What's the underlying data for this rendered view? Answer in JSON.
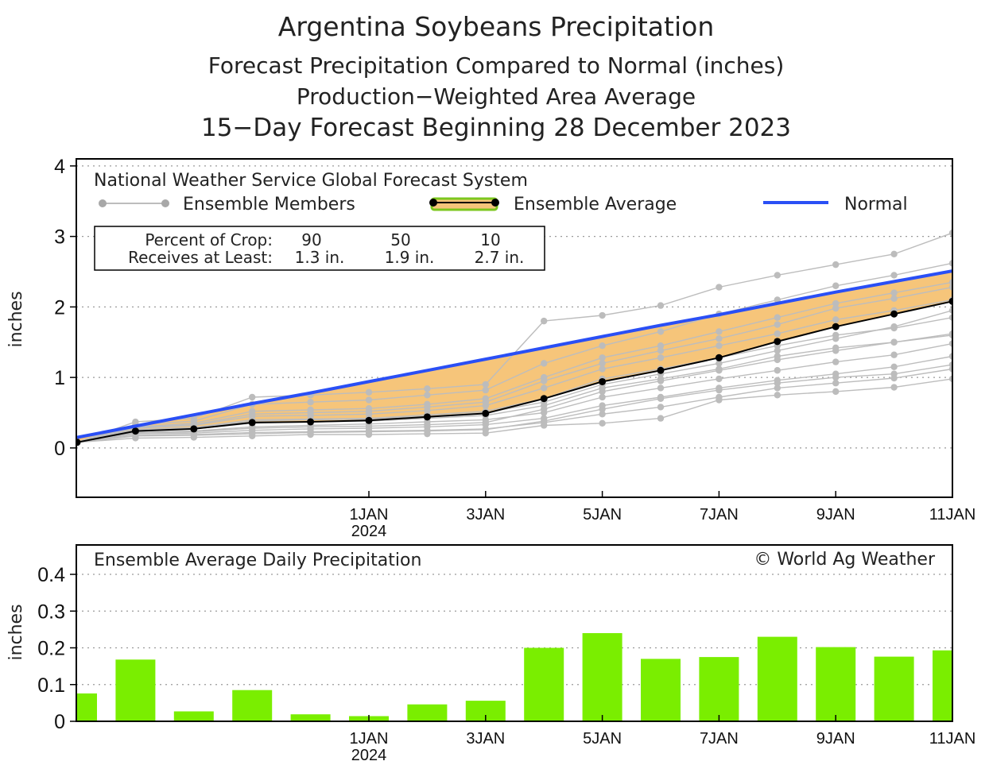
{
  "titles": {
    "line1": "Argentina Soybeans Precipitation",
    "line2": "Forecast Precipitation Compared to Normal (inches)",
    "line3": "Production−Weighted Area Average",
    "line4": "15−Day Forecast Beginning 28 December 2023"
  },
  "chart_data": [
    {
      "type": "line",
      "model": "National Weather Service Global Forecast System",
      "legend": {
        "members": "Ensemble Members",
        "average": "Ensemble Average",
        "normal": "Normal"
      },
      "crop_table": {
        "row1_label": "Percent of Crop:",
        "row2_label": "Receives at Least:",
        "percents": [
          "90",
          "50",
          "10"
        ],
        "amounts": [
          "1.3 in.",
          "1.9 in.",
          "2.7 in."
        ]
      },
      "ylabel": "inches",
      "ylim": [
        -0.7,
        4.1
      ],
      "xlim": [
        0,
        15
      ],
      "yticks": [
        "0",
        "1",
        "2",
        "3",
        "4"
      ],
      "xticks": [
        {
          "day": 5,
          "label": "1JAN",
          "sub": "2024"
        },
        {
          "day": 7,
          "label": "3JAN",
          "sub": ""
        },
        {
          "day": 9,
          "label": "5JAN",
          "sub": ""
        },
        {
          "day": 11,
          "label": "7JAN",
          "sub": ""
        },
        {
          "day": 13,
          "label": "9JAN",
          "sub": ""
        },
        {
          "day": 15,
          "label": "11JAN",
          "sub": ""
        }
      ],
      "x": [
        0,
        1,
        2,
        3,
        4,
        5,
        6,
        7,
        8,
        9,
        10,
        11,
        12,
        13,
        14,
        15
      ],
      "normal": [
        0.15,
        0.31,
        0.47,
        0.63,
        0.78,
        0.94,
        1.1,
        1.26,
        1.42,
        1.58,
        1.74,
        1.89,
        2.05,
        2.21,
        2.36,
        2.51
      ],
      "ensemble_average": [
        0.08,
        0.24,
        0.27,
        0.36,
        0.37,
        0.39,
        0.44,
        0.49,
        0.7,
        0.94,
        1.1,
        1.28,
        1.51,
        1.72,
        1.9,
        2.08
      ],
      "ensemble_members": [
        [
          0.08,
          0.14,
          0.15,
          0.17,
          0.19,
          0.19,
          0.2,
          0.21,
          0.32,
          0.35,
          0.42,
          0.68,
          0.75,
          0.8,
          0.86,
          0.98
        ],
        [
          0.08,
          0.18,
          0.19,
          0.22,
          0.23,
          0.24,
          0.25,
          0.27,
          0.36,
          0.48,
          0.58,
          0.72,
          0.85,
          0.92,
          0.99,
          1.12
        ],
        [
          0.08,
          0.2,
          0.21,
          0.25,
          0.27,
          0.28,
          0.3,
          0.33,
          0.42,
          0.6,
          0.72,
          0.85,
          0.96,
          1.05,
          1.15,
          1.3
        ],
        [
          0.08,
          0.22,
          0.24,
          0.3,
          0.32,
          0.34,
          0.37,
          0.4,
          0.5,
          0.72,
          0.85,
          0.98,
          1.1,
          1.22,
          1.32,
          1.48
        ],
        [
          0.08,
          0.24,
          0.27,
          0.35,
          0.37,
          0.38,
          0.42,
          0.46,
          0.6,
          0.85,
          0.98,
          1.12,
          1.3,
          1.42,
          1.5,
          1.6
        ],
        [
          0.08,
          0.26,
          0.29,
          0.4,
          0.41,
          0.42,
          0.47,
          0.52,
          0.7,
          0.98,
          1.12,
          1.28,
          1.45,
          1.6,
          1.7,
          1.85
        ],
        [
          0.08,
          0.28,
          0.32,
          0.45,
          0.46,
          0.48,
          0.53,
          0.6,
          0.85,
          1.12,
          1.28,
          1.45,
          1.62,
          1.82,
          1.95,
          2.1
        ],
        [
          0.08,
          0.3,
          0.35,
          0.52,
          0.54,
          0.56,
          0.62,
          0.7,
          1.0,
          1.28,
          1.45,
          1.65,
          1.85,
          2.05,
          2.2,
          2.35
        ],
        [
          0.08,
          0.33,
          0.38,
          0.62,
          0.65,
          0.68,
          0.75,
          0.82,
          1.2,
          1.45,
          1.65,
          1.9,
          2.1,
          2.3,
          2.45,
          2.62
        ],
        [
          0.08,
          0.37,
          0.42,
          0.72,
          0.75,
          0.79,
          0.84,
          0.9,
          1.8,
          1.88,
          2.02,
          2.28,
          2.45,
          2.6,
          2.75,
          3.05
        ],
        [
          0.08,
          0.17,
          0.18,
          0.2,
          0.22,
          0.23,
          0.24,
          0.26,
          0.38,
          0.55,
          0.7,
          0.82,
          0.92,
          1.0,
          1.05,
          1.18
        ],
        [
          0.08,
          0.25,
          0.28,
          0.38,
          0.4,
          0.41,
          0.45,
          0.5,
          0.65,
          0.9,
          1.05,
          1.2,
          1.38,
          1.55,
          1.72,
          1.95
        ],
        [
          0.08,
          0.21,
          0.23,
          0.28,
          0.3,
          0.31,
          0.33,
          0.36,
          0.55,
          0.8,
          0.95,
          1.1,
          1.25,
          1.38,
          1.5,
          1.62
        ],
        [
          0.08,
          0.29,
          0.33,
          0.48,
          0.5,
          0.52,
          0.58,
          0.65,
          0.95,
          1.2,
          1.38,
          1.55,
          1.75,
          1.98,
          2.12,
          2.28
        ]
      ]
    },
    {
      "type": "bar",
      "title": "Ensemble Average Daily Precipitation",
      "credit": "© World Ag Weather",
      "ylabel": "inches",
      "ylim": [
        0,
        0.48
      ],
      "xlim": [
        0,
        15
      ],
      "yticks": [
        "0",
        "0.1",
        "0.2",
        "0.3",
        "0.4"
      ],
      "xticks": [
        {
          "day": 5,
          "label": "1JAN",
          "sub": "2024"
        },
        {
          "day": 7,
          "label": "3JAN",
          "sub": ""
        },
        {
          "day": 9,
          "label": "5JAN",
          "sub": ""
        },
        {
          "day": 11,
          "label": "7JAN",
          "sub": ""
        },
        {
          "day": 13,
          "label": "9JAN",
          "sub": ""
        },
        {
          "day": 15,
          "label": "11JAN",
          "sub": ""
        }
      ],
      "x": [
        0,
        1,
        2,
        3,
        4,
        5,
        6,
        7,
        8,
        9,
        10,
        11,
        12,
        13,
        14,
        15
      ],
      "values": [
        0.076,
        0.168,
        0.027,
        0.085,
        0.019,
        0.014,
        0.046,
        0.056,
        0.2,
        0.24,
        0.17,
        0.175,
        0.23,
        0.202,
        0.176,
        0.193
      ],
      "color": "#7aee00"
    }
  ],
  "colors": {
    "normal": "#2a4ff5",
    "band": "#f6c57a",
    "member": "#bdbdbd",
    "bar": "#7aee00",
    "avg_outline": "#8ae22a"
  }
}
